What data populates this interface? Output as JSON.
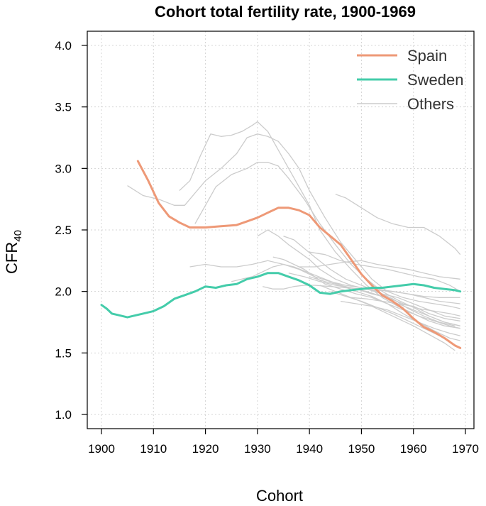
{
  "chart_data": {
    "type": "line",
    "title": "Cohort total fertility rate, 1900-1969",
    "xlabel": "Cohort",
    "ylabel": {
      "main": "CFR",
      "subscript": "40"
    },
    "xlim": [
      1900,
      1970
    ],
    "ylim": [
      1.0,
      4.0
    ],
    "xticks": [
      1900,
      1910,
      1920,
      1930,
      1940,
      1950,
      1960,
      1970
    ],
    "yticks": [
      "1.0",
      "1.5",
      "2.0",
      "2.5",
      "3.0",
      "3.5",
      "4.0"
    ],
    "grid": true,
    "legend_position": "top-right",
    "series": [
      {
        "name": "Spain",
        "color": "#ee9977",
        "x": [
          1907,
          1909,
          1911,
          1913,
          1915,
          1917,
          1920,
          1923,
          1926,
          1928,
          1930,
          1932,
          1934,
          1936,
          1938,
          1940,
          1942,
          1944,
          1946,
          1948,
          1950,
          1952,
          1954,
          1956,
          1958,
          1960,
          1962,
          1964,
          1966,
          1968,
          1969
        ],
        "y": [
          3.06,
          2.9,
          2.72,
          2.61,
          2.56,
          2.52,
          2.52,
          2.53,
          2.54,
          2.57,
          2.6,
          2.64,
          2.68,
          2.68,
          2.66,
          2.62,
          2.52,
          2.45,
          2.38,
          2.26,
          2.14,
          2.05,
          1.97,
          1.92,
          1.86,
          1.78,
          1.71,
          1.67,
          1.62,
          1.56,
          1.54
        ]
      },
      {
        "name": "Sweden",
        "color": "#44ccaa",
        "x": [
          1900,
          1901,
          1902,
          1903,
          1904,
          1905,
          1906,
          1908,
          1910,
          1912,
          1914,
          1916,
          1918,
          1920,
          1922,
          1924,
          1926,
          1928,
          1930,
          1932,
          1934,
          1936,
          1938,
          1940,
          1942,
          1944,
          1946,
          1948,
          1950,
          1952,
          1954,
          1956,
          1958,
          1960,
          1962,
          1964,
          1966,
          1968,
          1969
        ],
        "y": [
          1.89,
          1.86,
          1.82,
          1.81,
          1.8,
          1.79,
          1.8,
          1.82,
          1.84,
          1.88,
          1.94,
          1.97,
          2.0,
          2.04,
          2.03,
          2.05,
          2.06,
          2.1,
          2.12,
          2.15,
          2.15,
          2.12,
          2.09,
          2.05,
          1.99,
          1.98,
          2.0,
          2.01,
          2.02,
          2.03,
          2.03,
          2.04,
          2.05,
          2.06,
          2.05,
          2.03,
          2.02,
          2.01,
          2.0
        ]
      },
      {
        "name": "Others",
        "color": "#cccccc",
        "lines": [
          {
            "x": [
              1905,
              1908,
              1911,
              1914,
              1916,
              1918,
              1920,
              1923,
              1926,
              1928,
              1930,
              1932,
              1934,
              1936,
              1938,
              1940,
              1943,
              1946,
              1949,
              1952,
              1955,
              1958,
              1961,
              1964,
              1967,
              1969
            ],
            "y": [
              2.86,
              2.78,
              2.75,
              2.7,
              2.7,
              2.8,
              2.9,
              3.0,
              3.12,
              3.25,
              3.28,
              3.26,
              3.22,
              3.12,
              3.0,
              2.82,
              2.6,
              2.4,
              2.25,
              2.1,
              2.0,
              1.95,
              1.92,
              1.9,
              1.88,
              1.86
            ]
          },
          {
            "x": [
              1915,
              1917,
              1919,
              1921,
              1923,
              1925,
              1927,
              1929,
              1930,
              1932,
              1934,
              1936,
              1938,
              1940,
              1942,
              1945,
              1948,
              1951,
              1954,
              1957,
              1960,
              1963,
              1966,
              1969
            ],
            "y": [
              2.82,
              2.9,
              3.1,
              3.28,
              3.26,
              3.27,
              3.3,
              3.35,
              3.38,
              3.3,
              3.15,
              3.0,
              2.85,
              2.7,
              2.5,
              2.32,
              2.18,
              2.05,
              1.95,
              1.88,
              1.82,
              1.76,
              1.72,
              1.7
            ]
          },
          {
            "x": [
              1918,
              1920,
              1922,
              1925,
              1928,
              1930,
              1932,
              1934,
              1936,
              1939,
              1942,
              1945,
              1948,
              1951,
              1954,
              1957,
              1960,
              1963,
              1966,
              1969
            ],
            "y": [
              2.55,
              2.7,
              2.85,
              2.95,
              3.0,
              3.05,
              3.05,
              3.02,
              2.92,
              2.75,
              2.55,
              2.38,
              2.22,
              2.1,
              2.0,
              1.93,
              1.87,
              1.8,
              1.75,
              1.72
            ]
          },
          {
            "x": [
              1945,
              1947,
              1950,
              1953,
              1956,
              1959,
              1962,
              1965,
              1968,
              1969
            ],
            "y": [
              2.79,
              2.76,
              2.68,
              2.6,
              2.55,
              2.52,
              2.52,
              2.45,
              2.35,
              2.3
            ]
          },
          {
            "x": [
              1917,
              1920,
              1923,
              1926,
              1929,
              1932,
              1935,
              1938,
              1941,
              1944,
              1947,
              1950,
              1953,
              1956,
              1959,
              1962,
              1965,
              1969
            ],
            "y": [
              2.2,
              2.22,
              2.2,
              2.2,
              2.22,
              2.25,
              2.22,
              2.18,
              2.12,
              2.08,
              2.05,
              2.03,
              2.02,
              2.0,
              1.98,
              1.96,
              1.95,
              1.95
            ]
          },
          {
            "x": [
              1925,
              1927,
              1929,
              1931,
              1933,
              1935,
              1937,
              1940,
              1943,
              1946,
              1949,
              1952,
              1955,
              1958,
              1961,
              1964,
              1967,
              1969
            ],
            "y": [
              2.08,
              2.1,
              2.12,
              2.16,
              2.2,
              2.22,
              2.2,
              2.15,
              2.1,
              2.05,
              2.02,
              1.98,
              1.95,
              1.9,
              1.86,
              1.84,
              1.82,
              1.8
            ]
          },
          {
            "x": [
              1930,
              1932,
              1934,
              1936,
              1938,
              1940,
              1942,
              1945,
              1948,
              1951,
              1954,
              1957,
              1960,
              1963,
              1966,
              1969
            ],
            "y": [
              2.45,
              2.5,
              2.45,
              2.38,
              2.32,
              2.26,
              2.18,
              2.1,
              2.05,
              2.02,
              1.98,
              1.95,
              1.9,
              1.85,
              1.8,
              1.78
            ]
          },
          {
            "x": [
              1931,
              1933,
              1935,
              1937,
              1939,
              1941,
              1944,
              1947,
              1950,
              1953,
              1956,
              1959,
              1962,
              1965,
              1969
            ],
            "y": [
              2.04,
              2.02,
              2.02,
              2.04,
              2.05,
              2.05,
              2.04,
              2.03,
              2.02,
              2.01,
              2.0,
              1.98,
              1.95,
              1.92,
              1.9
            ]
          },
          {
            "x": [
              1933,
              1935,
              1937,
              1939,
              1941,
              1943,
              1946,
              1949,
              1952,
              1955,
              1958,
              1961,
              1964,
              1967,
              1969
            ],
            "y": [
              2.28,
              2.26,
              2.22,
              2.18,
              2.12,
              2.06,
              2.02,
              1.98,
              1.95,
              1.9,
              1.85,
              1.8,
              1.76,
              1.72,
              1.7
            ]
          },
          {
            "x": [
              1935,
              1937,
              1939,
              1941,
              1944,
              1947,
              1950,
              1953,
              1956,
              1959,
              1962,
              1965,
              1968
            ],
            "y": [
              2.45,
              2.42,
              2.35,
              2.28,
              2.18,
              2.1,
              2.05,
              2.0,
              1.94,
              1.86,
              1.8,
              1.75,
              1.72
            ]
          },
          {
            "x": [
              1940,
              1943,
              1946,
              1949,
              1952,
              1955,
              1958,
              1961,
              1964,
              1967,
              1969
            ],
            "y": [
              2.32,
              2.3,
              2.25,
              2.22,
              2.2,
              2.18,
              2.15,
              2.12,
              2.1,
              2.05,
              2.0
            ]
          },
          {
            "x": [
              1936,
              1939,
              1942,
              1945,
              1948,
              1951,
              1954,
              1957,
              1960,
              1963,
              1966,
              1969
            ],
            "y": [
              2.15,
              2.12,
              2.08,
              2.05,
              2.03,
              2.0,
              1.96,
              1.9,
              1.85,
              1.8,
              1.75,
              1.72
            ]
          },
          {
            "x": [
              1940,
              1943,
              1946,
              1949,
              1952,
              1955,
              1958,
              1961,
              1964,
              1967,
              1969
            ],
            "y": [
              2.12,
              2.08,
              2.05,
              2.0,
              1.96,
              1.9,
              1.82,
              1.75,
              1.68,
              1.62,
              1.6
            ]
          },
          {
            "x": [
              1942,
              1945,
              1948,
              1951,
              1954,
              1957,
              1960,
              1963,
              1966,
              1968
            ],
            "y": [
              2.05,
              2.0,
              1.95,
              1.9,
              1.84,
              1.78,
              1.72,
              1.65,
              1.58,
              1.52
            ]
          },
          {
            "x": [
              1944,
              1947,
              1950,
              1953,
              1956,
              1959,
              1962,
              1965,
              1968
            ],
            "y": [
              2.0,
              1.96,
              1.92,
              1.87,
              1.82,
              1.76,
              1.7,
              1.64,
              1.56
            ]
          },
          {
            "x": [
              1946,
              1949,
              1952,
              1955,
              1958,
              1961,
              1964,
              1967,
              1969
            ],
            "y": [
              1.92,
              1.9,
              1.88,
              1.85,
              1.8,
              1.75,
              1.7,
              1.66,
              1.64
            ]
          },
          {
            "x": [
              1938,
              1941,
              1944,
              1947,
              1950,
              1953,
              1956,
              1959,
              1962,
              1965,
              1969
            ],
            "y": [
              2.2,
              2.2,
              2.22,
              2.24,
              2.25,
              2.22,
              2.2,
              2.18,
              2.15,
              2.12,
              2.1
            ]
          },
          {
            "x": [
              1948,
              1951,
              1954,
              1957,
              1960,
              1963,
              1966,
              1969
            ],
            "y": [
              1.95,
              1.94,
              1.92,
              1.9,
              1.88,
              1.82,
              1.78,
              1.76
            ]
          }
        ]
      }
    ]
  }
}
